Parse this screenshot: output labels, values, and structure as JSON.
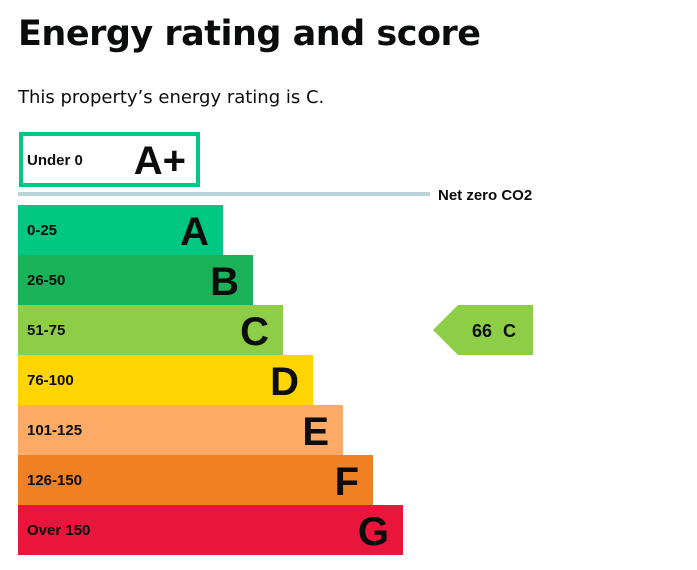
{
  "heading": "Energy rating and score",
  "subtitle": "This property’s energy rating is C.",
  "chart_data": {
    "type": "bar",
    "net_zero_label": "Net zero CO2",
    "top_band": {
      "range": "Under 0",
      "letter": "A+",
      "color": "#00c781"
    },
    "bands": [
      {
        "range": "0-25",
        "letter": "A",
        "color": "#00c781"
      },
      {
        "range": "26-50",
        "letter": "B",
        "color": "#19b459"
      },
      {
        "range": "51-75",
        "letter": "C",
        "color": "#8dce46"
      },
      {
        "range": "76-100",
        "letter": "D",
        "color": "#ffd500"
      },
      {
        "range": "101-125",
        "letter": "E",
        "color": "#fcaa65"
      },
      {
        "range": "126-150",
        "letter": "F",
        "color": "#ef8023"
      },
      {
        "range": "Over 150",
        "letter": "G",
        "color": "#e9153b"
      }
    ],
    "current": {
      "score": "66",
      "letter": "C",
      "band_index": 2
    },
    "net_zero_line_color": "#b5d3d9"
  }
}
